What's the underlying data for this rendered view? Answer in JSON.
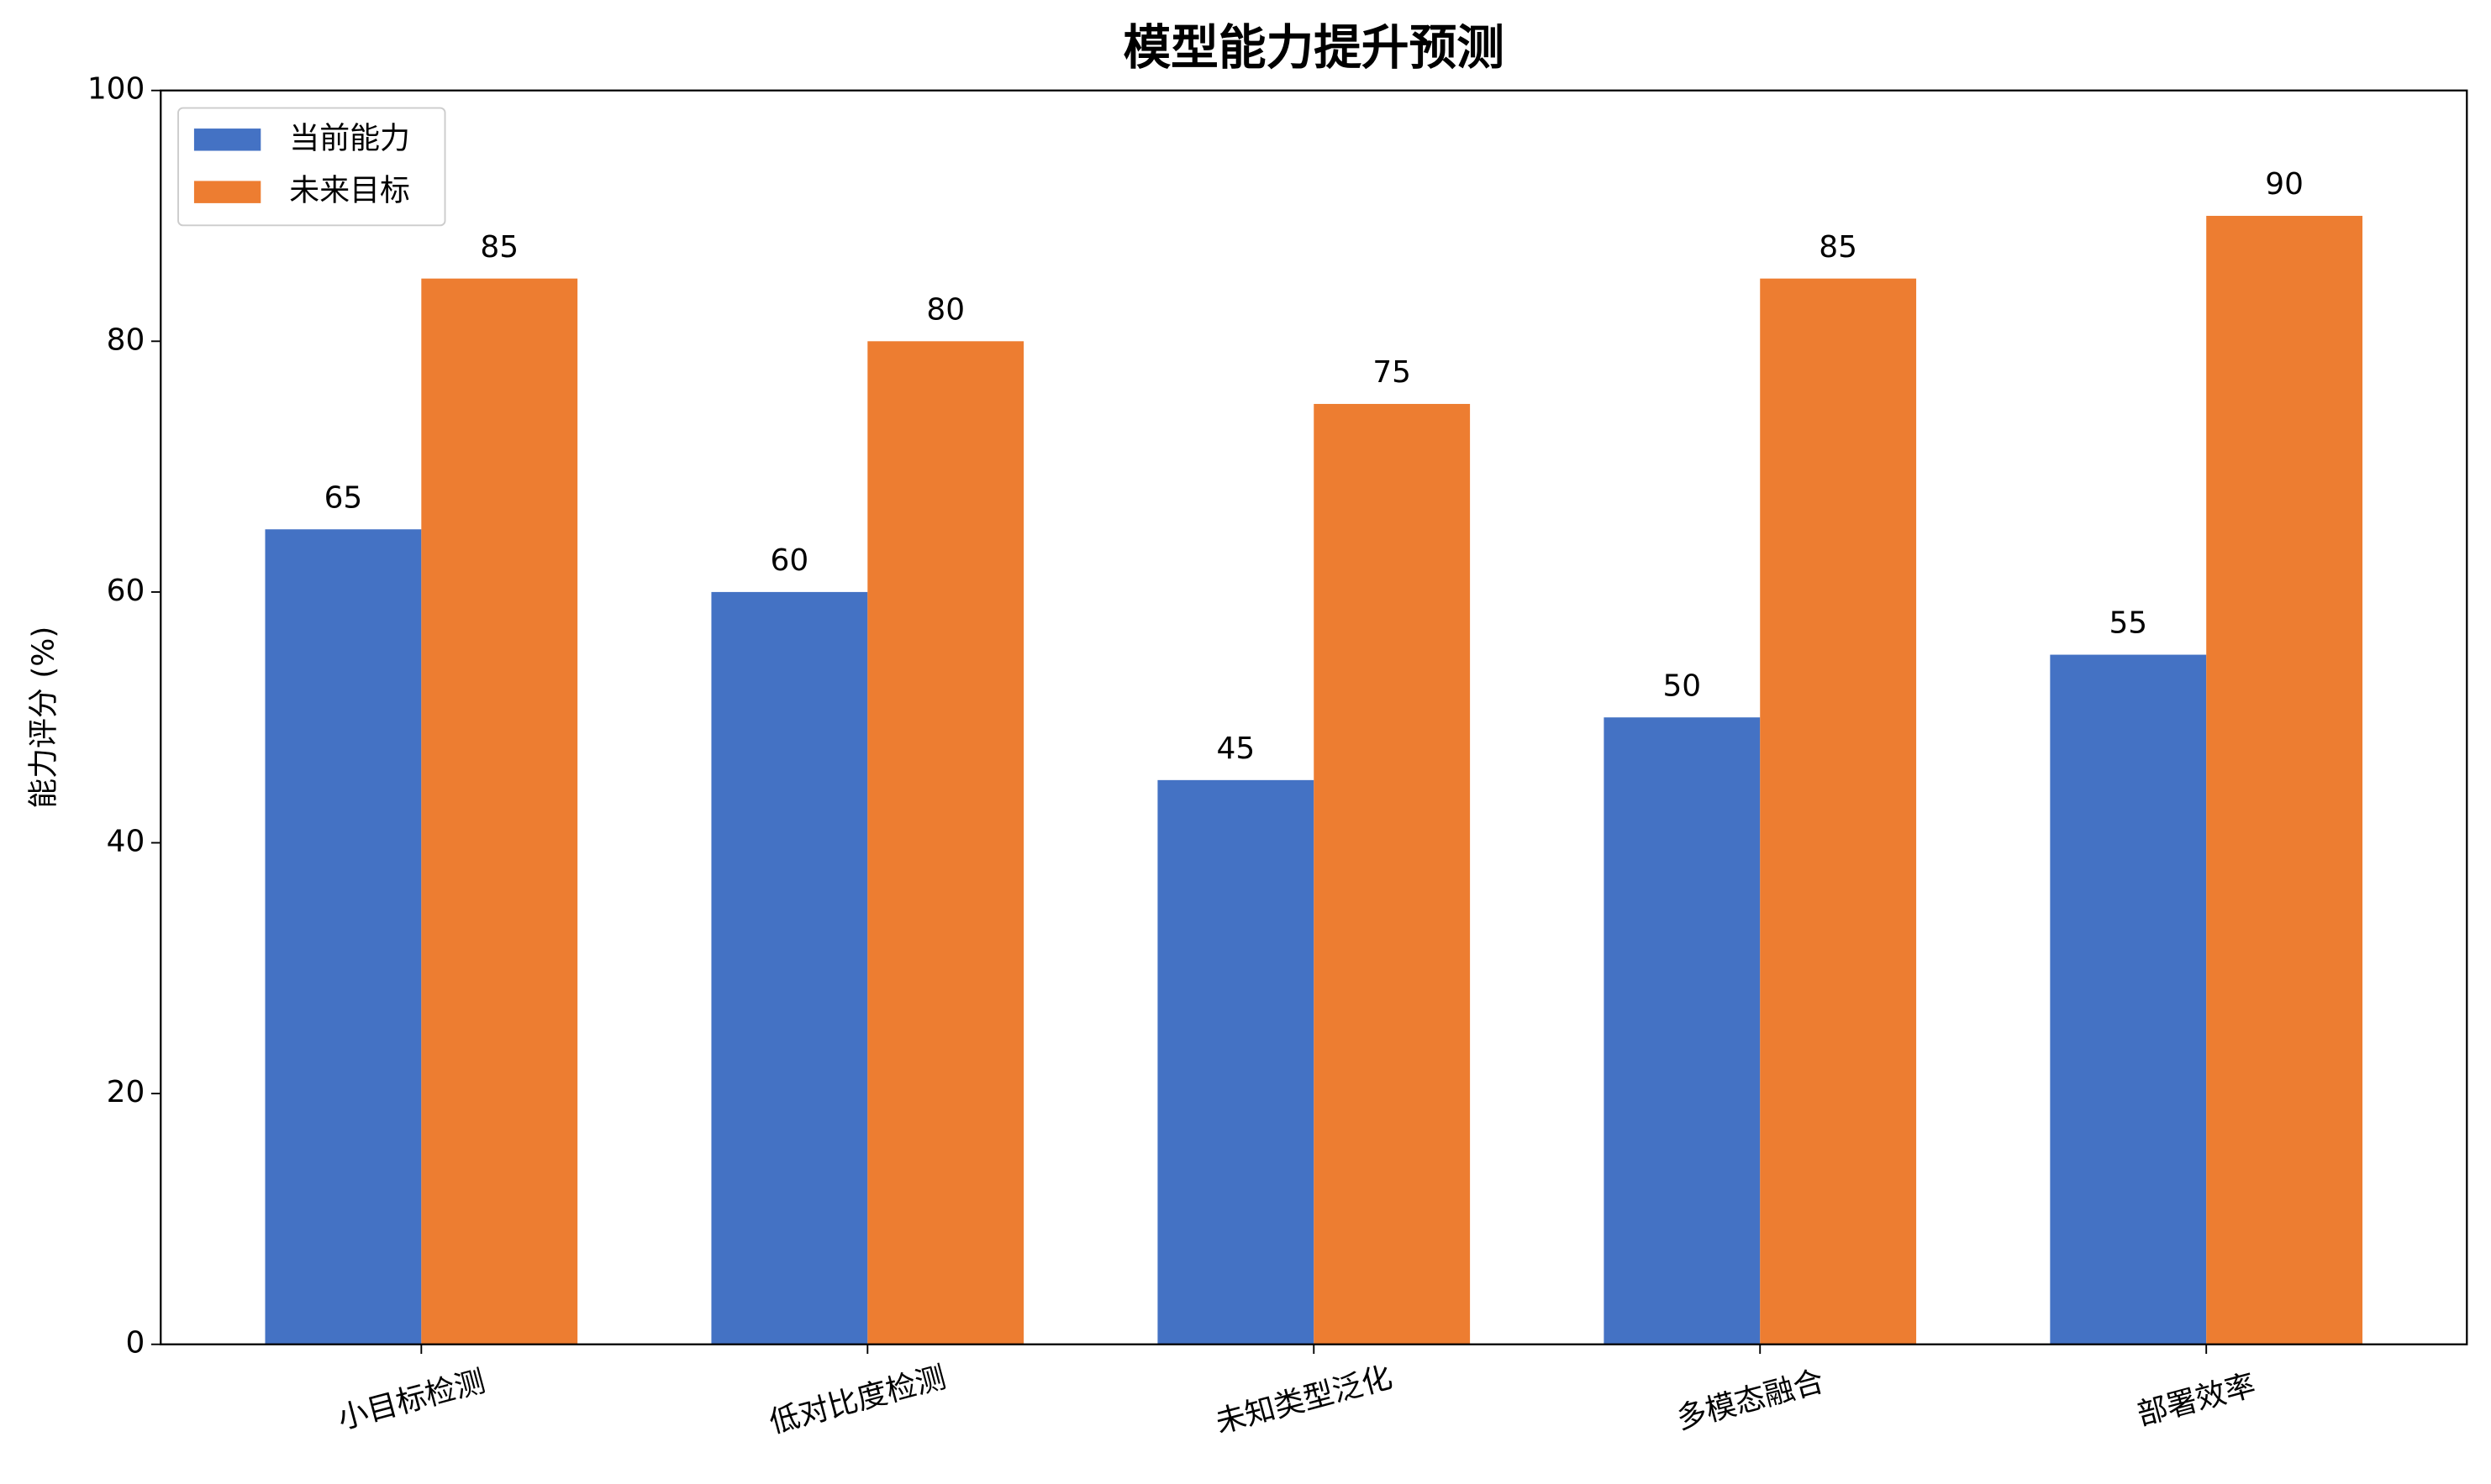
{
  "chart_data": {
    "type": "grouped-bar",
    "title": "模型能力提升预测",
    "y_label": "能力评分 (%)",
    "categories": [
      "小目标检测",
      "低对比度检测",
      "未知类型泛化",
      "多模态融合",
      "部署效率"
    ],
    "series": [
      {
        "name": "当前能力",
        "color": "#4472c4",
        "values": [
          65,
          60,
          45,
          50,
          55
        ]
      },
      {
        "name": "未来目标",
        "color": "#ed7d31",
        "values": [
          85,
          80,
          75,
          85,
          90
        ]
      }
    ],
    "ylim": [
      0,
      100
    ],
    "yticks": [
      0,
      20,
      40,
      60,
      80,
      100
    ],
    "legend": "upper left"
  }
}
